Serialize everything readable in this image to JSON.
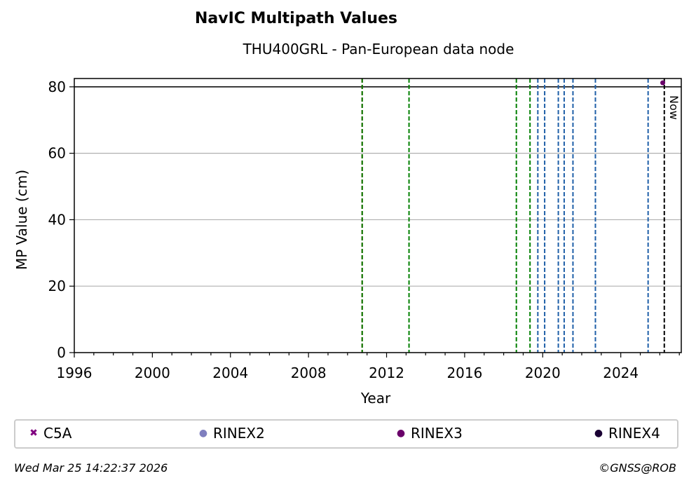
{
  "chart_data": {
    "type": "scatter",
    "title": "NavIC Multipath Values",
    "subtitle": "THU400GRL - Pan-European data node",
    "xlabel": "Year",
    "ylabel": "MP Value (cm)",
    "xlim": [
      1996,
      2027.1
    ],
    "ylim": [
      0,
      82.5
    ],
    "x_ticks": [
      1996,
      2000,
      2004,
      2008,
      2012,
      2016,
      2020,
      2024
    ],
    "x_tick_labels": [
      "1996",
      "2000",
      "2004",
      "2008",
      "2012",
      "2016",
      "2020",
      "2024"
    ],
    "y_ticks": [
      0,
      20,
      40,
      60,
      80
    ],
    "y_tick_labels": [
      "0",
      "20",
      "40",
      "60",
      "80"
    ],
    "grid": "horizontal",
    "reference_line_y": 80,
    "event_lines": [
      {
        "x": 2010.75,
        "color": "#cc0000"
      },
      {
        "x": 2010.75,
        "color": "#008000"
      },
      {
        "x": 2013.15,
        "color": "#008000"
      },
      {
        "x": 2018.65,
        "color": "#008000"
      },
      {
        "x": 2019.35,
        "color": "#008000"
      },
      {
        "x": 2019.75,
        "color": "#1f5fa8"
      },
      {
        "x": 2020.1,
        "color": "#1f5fa8"
      },
      {
        "x": 2020.8,
        "color": "#1f5fa8"
      },
      {
        "x": 2021.1,
        "color": "#1f5fa8"
      },
      {
        "x": 2021.55,
        "color": "#1f5fa8"
      },
      {
        "x": 2022.7,
        "color": "#1f5fa8"
      },
      {
        "x": 2025.4,
        "color": "#1f5fa8"
      },
      {
        "x": 2026.23,
        "color": "#000000"
      }
    ],
    "now_label": "Now",
    "series": [
      {
        "name": "C5A",
        "color": "#800080",
        "marker": "x",
        "points": []
      },
      {
        "name": "RINEX2",
        "color": "#7f7fbf",
        "marker": "circle",
        "points": []
      },
      {
        "name": "RINEX3",
        "color": "#6a006a",
        "marker": "circle",
        "points": [
          [
            2026.15,
            81.2
          ]
        ]
      },
      {
        "name": "RINEX4",
        "color": "#1a0033",
        "marker": "circle",
        "points": []
      }
    ],
    "legend_position": "bottom"
  },
  "footer": {
    "timestamp": "Wed Mar 25 14:22:37 2026",
    "credit": "©GNSS@ROB"
  }
}
